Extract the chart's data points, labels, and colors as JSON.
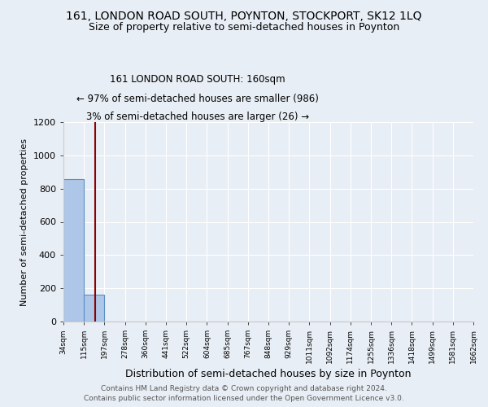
{
  "title": "161, LONDON ROAD SOUTH, POYNTON, STOCKPORT, SK12 1LQ",
  "subtitle": "Size of property relative to semi-detached houses in Poynton",
  "xlabel": "Distribution of semi-detached houses by size in Poynton",
  "ylabel": "Number of semi-detached properties",
  "bin_edges": [
    34,
    115,
    197,
    278,
    360,
    441,
    522,
    604,
    685,
    767,
    848,
    929,
    1011,
    1092,
    1174,
    1255,
    1336,
    1418,
    1499,
    1581,
    1662
  ],
  "bar_heights": [
    857,
    160,
    0,
    0,
    0,
    0,
    0,
    0,
    0,
    0,
    0,
    0,
    0,
    0,
    0,
    0,
    0,
    0,
    0,
    0
  ],
  "bar_color": "#aec6e8",
  "bar_edge_color": "#5a8fc2",
  "property_size": 160,
  "property_line_color": "#8b0000",
  "annotation_text": "161 LONDON ROAD SOUTH: 160sqm\n← 97% of semi-detached houses are smaller (986)\n3% of semi-detached houses are larger (26) →",
  "annotation_box_color": "#ffffff",
  "annotation_box_edge_color": "#8b0000",
  "ylim": [
    0,
    1200
  ],
  "yticks": [
    0,
    200,
    400,
    600,
    800,
    1000,
    1200
  ],
  "footer_line1": "Contains HM Land Registry data © Crown copyright and database right 2024.",
  "footer_line2": "Contains public sector information licensed under the Open Government Licence v3.0.",
  "bg_color": "#e8eef5",
  "plot_bg_color": "#e8eef5",
  "title_fontsize": 10,
  "subtitle_fontsize": 9,
  "annotation_fontsize": 8.5
}
